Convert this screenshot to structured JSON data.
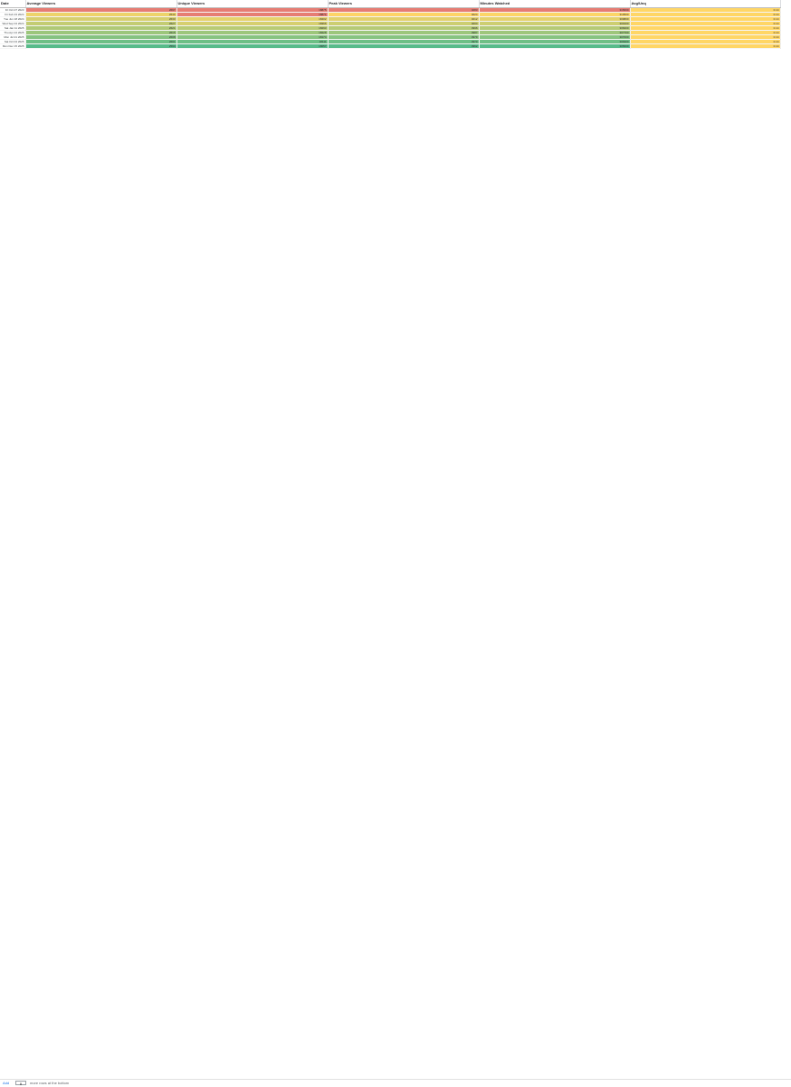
{
  "sheet": {
    "headers": [
      "Date",
      "Average Viewers",
      "Unique Viewers",
      "Peak Viewers",
      "Minutes Watched",
      "Avg/Unq"
    ],
    "rows": [
      [
        "Fri Oct 27 2023",
        2697,
        18875,
        4083,
        315600,
        0.14
      ],
      [
        "Fri Feb 23 2024",
        2640,
        18871,
        4024,
        310500,
        0.14
      ],
      [
        "Tue Jun 18 2024",
        2633,
        18402,
        4012,
        309800,
        0.14
      ],
      [
        "Wed Sep 04 2024",
        2627,
        18366,
        4004,
        309100,
        0.14
      ],
      [
        "Sat Jan 11 2025",
        2621,
        18293,
        3996,
        308400,
        0.14
      ],
      [
        "Thu Apr 24 2025",
        2615,
        18228,
        3987,
        307700,
        0.14
      ],
      [
        "Mon Jul 21 2025",
        2608,
        18174,
        3979,
        307000,
        0.14
      ],
      [
        "Sat Oct 04 2025",
        2601,
        18111,
        3970,
        306300,
        0.14
      ],
      [
        "Mon Dec 15 2025",
        2594,
        18057,
        3962,
        305600,
        0.14
      ]
    ]
  },
  "footer": {
    "add_label": "Add",
    "rows_value": "0",
    "rows_label": "more rows at the bottom"
  },
  "colors": {
    "scale_low": "#57bb8a",
    "scale_mid": "#ffd666",
    "scale_high": "#e67c73"
  }
}
